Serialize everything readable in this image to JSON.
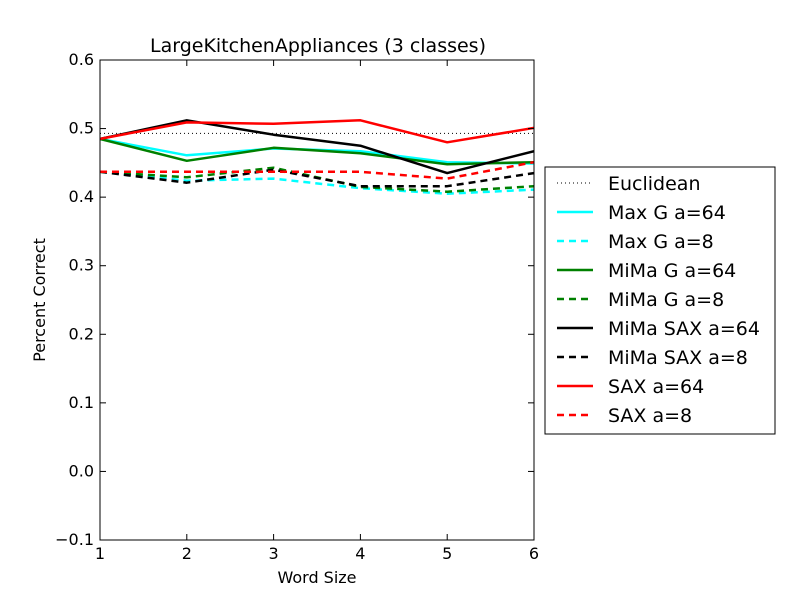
{
  "chart_data": {
    "type": "line",
    "title": "LargeKitchenAppliances (3 classes)",
    "xlabel": "Word Size",
    "ylabel": "Percent Correct",
    "xlim": [
      1,
      6
    ],
    "ylim": [
      -0.1,
      0.6
    ],
    "xticks": [
      "1",
      "2",
      "3",
      "4",
      "5",
      "6"
    ],
    "yticks": [
      "−0.1",
      "0.0",
      "0.1",
      "0.2",
      "0.3",
      "0.4",
      "0.5",
      "0.6"
    ],
    "ytick_values": [
      -0.1,
      0.0,
      0.1,
      0.2,
      0.3,
      0.4,
      0.5,
      0.6
    ],
    "x": [
      1,
      2,
      3,
      4,
      5,
      6
    ],
    "grid": false,
    "legend_position": "outside-right",
    "series": [
      {
        "name": "Euclidean",
        "color": "#000000",
        "style": "dotted",
        "width": 1,
        "values": [
          0.493,
          0.493,
          0.493,
          0.493,
          0.493,
          0.493
        ]
      },
      {
        "name": "Max G a=64",
        "color": "#00ffff",
        "style": "solid",
        "width": 2.5,
        "values": [
          0.485,
          0.461,
          0.471,
          0.467,
          0.451,
          0.449
        ]
      },
      {
        "name": "Max G a=8",
        "color": "#00ffff",
        "style": "dashed",
        "width": 2.5,
        "values": [
          0.437,
          0.424,
          0.427,
          0.413,
          0.405,
          0.411
        ]
      },
      {
        "name": "MiMa G a=64",
        "color": "#008000",
        "style": "solid",
        "width": 2.5,
        "values": [
          0.485,
          0.453,
          0.472,
          0.464,
          0.448,
          0.451
        ]
      },
      {
        "name": "MiMa G a=8",
        "color": "#008000",
        "style": "dashed",
        "width": 2.5,
        "values": [
          0.437,
          0.429,
          0.443,
          0.415,
          0.408,
          0.416
        ]
      },
      {
        "name": "MiMa SAX a=64",
        "color": "#000000",
        "style": "solid",
        "width": 2.5,
        "values": [
          0.485,
          0.512,
          0.491,
          0.475,
          0.435,
          0.467
        ]
      },
      {
        "name": "MiMa SAX a=8",
        "color": "#000000",
        "style": "dashed",
        "width": 2.5,
        "values": [
          0.437,
          0.421,
          0.44,
          0.416,
          0.416,
          0.435
        ]
      },
      {
        "name": "SAX a=64",
        "color": "#ff0000",
        "style": "solid",
        "width": 2.5,
        "values": [
          0.485,
          0.509,
          0.507,
          0.512,
          0.48,
          0.501
        ]
      },
      {
        "name": "SAX a=8",
        "color": "#ff0000",
        "style": "dashed",
        "width": 2.5,
        "values": [
          0.437,
          0.437,
          0.437,
          0.437,
          0.427,
          0.451
        ]
      }
    ]
  }
}
